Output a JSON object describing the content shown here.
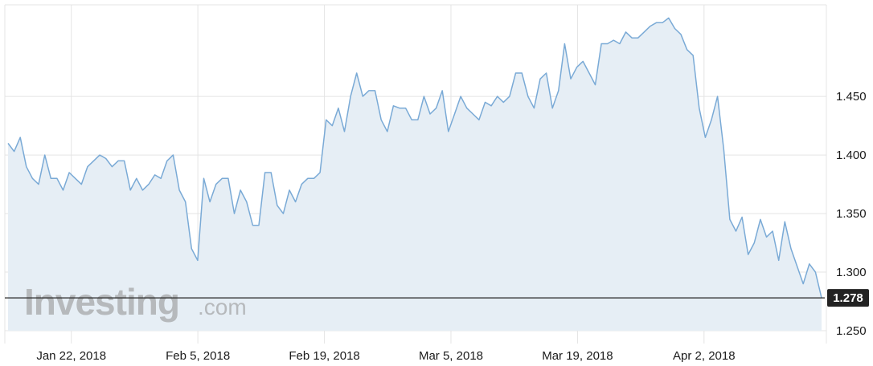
{
  "chart_data": {
    "type": "area",
    "watermark": "Investing",
    "watermark_suffix": ".com",
    "x_labels": [
      "Jan 22, 2018",
      "Feb 5, 2018",
      "Feb 19, 2018",
      "Mar 5, 2018",
      "Mar 19, 2018",
      "Apr 2, 2018"
    ],
    "y_ticks": [
      "1.450",
      "1.400",
      "1.350",
      "1.300",
      "1.250"
    ],
    "ylim": [
      1.25,
      1.52
    ],
    "current_value": "1.278",
    "colors": {
      "line": "#7aaad6",
      "fill": "#e6eef5",
      "current_line": "#222222",
      "badge": "#222222"
    },
    "x_start": "2018-01-15",
    "x_end": "2018-04-15",
    "values": [
      1.41,
      1.403,
      1.415,
      1.39,
      1.38,
      1.375,
      1.4,
      1.38,
      1.38,
      1.37,
      1.385,
      1.38,
      1.375,
      1.39,
      1.395,
      1.4,
      1.397,
      1.39,
      1.395,
      1.395,
      1.37,
      1.38,
      1.37,
      1.375,
      1.383,
      1.38,
      1.395,
      1.4,
      1.37,
      1.36,
      1.32,
      1.31,
      1.38,
      1.36,
      1.375,
      1.38,
      1.38,
      1.35,
      1.37,
      1.36,
      1.34,
      1.34,
      1.385,
      1.385,
      1.357,
      1.35,
      1.37,
      1.36,
      1.375,
      1.38,
      1.38,
      1.385,
      1.43,
      1.425,
      1.44,
      1.42,
      1.45,
      1.47,
      1.45,
      1.455,
      1.455,
      1.43,
      1.42,
      1.442,
      1.44,
      1.44,
      1.43,
      1.43,
      1.45,
      1.435,
      1.44,
      1.455,
      1.42,
      1.435,
      1.45,
      1.44,
      1.435,
      1.43,
      1.445,
      1.442,
      1.45,
      1.445,
      1.45,
      1.47,
      1.47,
      1.45,
      1.44,
      1.465,
      1.47,
      1.44,
      1.455,
      1.495,
      1.465,
      1.475,
      1.48,
      1.47,
      1.46,
      1.495,
      1.495,
      1.498,
      1.495,
      1.505,
      1.5,
      1.5,
      1.505,
      1.51,
      1.513,
      1.513,
      1.517,
      1.508,
      1.503,
      1.49,
      1.485,
      1.44,
      1.415,
      1.43,
      1.45,
      1.405,
      1.345,
      1.335,
      1.347,
      1.315,
      1.325,
      1.345,
      1.33,
      1.335,
      1.31,
      1.343,
      1.32,
      1.305,
      1.29,
      1.307,
      1.3,
      1.278
    ]
  }
}
